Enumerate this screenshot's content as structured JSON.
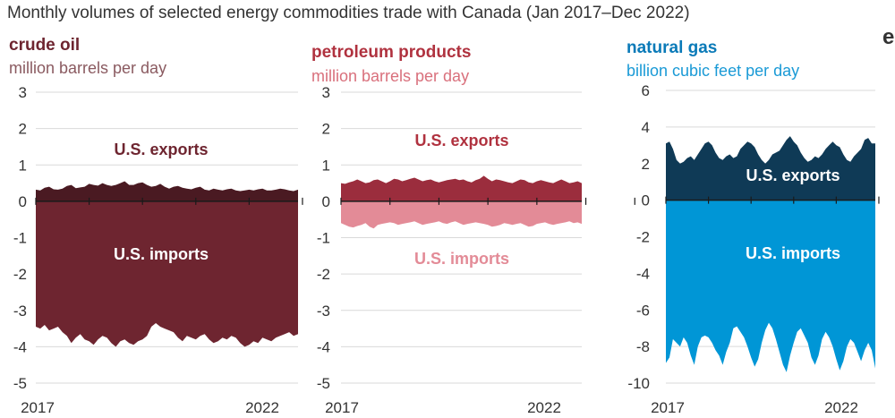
{
  "title": "Monthly volumes of selected energy commodities trade with Canada (Jan 2017–Dec 2022)",
  "logo_text": "e",
  "colors": {
    "crude_exports": "#4a1a22",
    "crude_imports": "#6e2530",
    "petroleum_exports": "#9b2d3d",
    "petroleum_imports": "#e38b97",
    "gas_exports": "#0f3a56",
    "gas_imports": "#0096d6",
    "crude_title": "#6e2530",
    "crude_unit": "#8a5a60",
    "petroleum_title": "#b0323f",
    "petroleum_unit": "#d9707c",
    "gas_title": "#0a7ab8",
    "gas_unit": "#1a9ad6"
  },
  "chart_data": [
    {
      "type": "area",
      "title": "crude oil",
      "ylabel": "million barrels per day",
      "ylim": [
        -5,
        3
      ],
      "yticks": [
        "3",
        "2",
        "1",
        "0",
        "-1",
        "-2",
        "-3",
        "-4",
        "-5"
      ],
      "xticks": [
        "2017",
        "2022"
      ],
      "x_range": [
        "Jan 2017",
        "Dec 2022"
      ],
      "annotations": {
        "exports": "U.S. exports",
        "imports": "U.S. imports"
      },
      "series": [
        {
          "name": "U.S. exports",
          "values": [
            0.32,
            0.3,
            0.37,
            0.4,
            0.33,
            0.32,
            0.35,
            0.42,
            0.45,
            0.36,
            0.38,
            0.4,
            0.48,
            0.45,
            0.43,
            0.5,
            0.45,
            0.42,
            0.45,
            0.5,
            0.55,
            0.45,
            0.45,
            0.5,
            0.52,
            0.45,
            0.4,
            0.42,
            0.48,
            0.4,
            0.35,
            0.4,
            0.42,
            0.37,
            0.35,
            0.33,
            0.37,
            0.4,
            0.32,
            0.3,
            0.35,
            0.32,
            0.3,
            0.33,
            0.35,
            0.3,
            0.28,
            0.3,
            0.32,
            0.3,
            0.33,
            0.35,
            0.3,
            0.3,
            0.32,
            0.35,
            0.33,
            0.3,
            0.28,
            0.32
          ]
        },
        {
          "name": "U.S. imports",
          "values": [
            -3.45,
            -3.5,
            -3.4,
            -3.55,
            -3.5,
            -3.45,
            -3.6,
            -3.7,
            -3.9,
            -3.75,
            -3.65,
            -3.8,
            -3.85,
            -3.95,
            -3.8,
            -3.7,
            -3.75,
            -3.9,
            -4.0,
            -3.85,
            -3.8,
            -3.9,
            -3.95,
            -3.85,
            -3.8,
            -3.7,
            -3.45,
            -3.35,
            -3.45,
            -3.5,
            -3.55,
            -3.6,
            -3.75,
            -3.85,
            -3.7,
            -3.75,
            -3.8,
            -3.7,
            -3.65,
            -3.8,
            -3.9,
            -3.85,
            -3.75,
            -3.8,
            -3.7,
            -3.75,
            -3.9,
            -4.0,
            -3.95,
            -3.85,
            -3.9,
            -3.75,
            -3.8,
            -3.85,
            -3.75,
            -3.7,
            -3.65,
            -3.6,
            -3.7,
            -3.65
          ]
        }
      ]
    },
    {
      "type": "area",
      "title": "petroleum products",
      "ylabel": "million barrels per day",
      "ylim": [
        -5,
        3
      ],
      "yticks": [
        "3",
        "2",
        "1",
        "0",
        "-1",
        "-2",
        "-3",
        "-4",
        "-5"
      ],
      "xticks": [
        "2017",
        "2022"
      ],
      "x_range": [
        "Jan 2017",
        "Dec 2022"
      ],
      "annotations": {
        "exports": "U.S. exports",
        "imports": "U.S. imports"
      },
      "series": [
        {
          "name": "U.S. exports",
          "values": [
            0.5,
            0.48,
            0.52,
            0.55,
            0.6,
            0.55,
            0.5,
            0.52,
            0.58,
            0.6,
            0.55,
            0.5,
            0.55,
            0.62,
            0.6,
            0.55,
            0.58,
            0.62,
            0.65,
            0.6,
            0.55,
            0.58,
            0.6,
            0.55,
            0.52,
            0.55,
            0.58,
            0.6,
            0.62,
            0.58,
            0.6,
            0.55,
            0.52,
            0.58,
            0.62,
            0.7,
            0.62,
            0.55,
            0.6,
            0.58,
            0.55,
            0.52,
            0.5,
            0.55,
            0.6,
            0.58,
            0.52,
            0.5,
            0.55,
            0.58,
            0.55,
            0.52,
            0.5,
            0.55,
            0.6,
            0.55,
            0.5,
            0.52,
            0.55,
            0.5
          ]
        },
        {
          "name": "U.S. imports",
          "values": [
            -0.6,
            -0.65,
            -0.7,
            -0.72,
            -0.68,
            -0.65,
            -0.6,
            -0.7,
            -0.75,
            -0.65,
            -0.62,
            -0.6,
            -0.58,
            -0.6,
            -0.65,
            -0.62,
            -0.6,
            -0.58,
            -0.55,
            -0.6,
            -0.65,
            -0.62,
            -0.6,
            -0.58,
            -0.55,
            -0.6,
            -0.62,
            -0.58,
            -0.55,
            -0.6,
            -0.65,
            -0.62,
            -0.6,
            -0.58,
            -0.6,
            -0.62,
            -0.65,
            -0.7,
            -0.68,
            -0.65,
            -0.6,
            -0.62,
            -0.65,
            -0.62,
            -0.6,
            -0.65,
            -0.7,
            -0.68,
            -0.62,
            -0.6,
            -0.58,
            -0.62,
            -0.65,
            -0.62,
            -0.6,
            -0.58,
            -0.55,
            -0.6,
            -0.58,
            -0.62
          ]
        }
      ]
    },
    {
      "type": "area",
      "title": "natural gas",
      "ylabel": "billion cubic feet per day",
      "ylim": [
        -10,
        6
      ],
      "yticks": [
        "6",
        "4",
        "2",
        "0",
        "-2",
        "-4",
        "-6",
        "-8",
        "-10"
      ],
      "xticks": [
        "2017",
        "2022"
      ],
      "x_range": [
        "Jan 2017",
        "Dec 2022"
      ],
      "annotations": {
        "exports": "U.S. exports",
        "imports": "U.S. imports"
      },
      "series": [
        {
          "name": "U.S. exports",
          "values": [
            3.1,
            3.2,
            2.8,
            2.2,
            2.0,
            2.1,
            2.3,
            2.4,
            2.2,
            2.5,
            2.8,
            3.1,
            3.2,
            3.0,
            2.6,
            2.3,
            2.2,
            2.4,
            2.5,
            2.3,
            2.4,
            2.8,
            3.0,
            3.2,
            3.1,
            2.9,
            2.5,
            2.2,
            2.0,
            2.2,
            2.5,
            2.6,
            2.7,
            3.0,
            3.3,
            3.5,
            3.2,
            3.0,
            2.6,
            2.3,
            2.1,
            2.2,
            2.4,
            2.3,
            2.5,
            2.8,
            3.0,
            3.2,
            3.0,
            2.9,
            2.5,
            2.2,
            2.1,
            2.4,
            2.6,
            2.8,
            3.3,
            3.4,
            3.1,
            3.1
          ]
        },
        {
          "name": "U.S. imports",
          "values": [
            -8.9,
            -8.6,
            -7.6,
            -7.8,
            -8.0,
            -7.5,
            -7.8,
            -8.5,
            -9.0,
            -8.0,
            -7.5,
            -7.4,
            -7.5,
            -7.8,
            -8.2,
            -8.5,
            -9.0,
            -8.3,
            -7.8,
            -7.0,
            -6.9,
            -7.2,
            -7.5,
            -8.0,
            -8.6,
            -9.1,
            -8.7,
            -7.8,
            -7.1,
            -6.7,
            -7.0,
            -7.6,
            -8.3,
            -9.0,
            -9.4,
            -8.5,
            -7.8,
            -7.2,
            -7.0,
            -7.4,
            -7.8,
            -8.6,
            -9.0,
            -8.5,
            -7.6,
            -7.2,
            -7.5,
            -8.0,
            -8.7,
            -9.3,
            -8.8,
            -8.0,
            -7.6,
            -7.8,
            -8.3,
            -8.8,
            -8.2,
            -7.8,
            -8.2,
            -9.2
          ]
        }
      ]
    }
  ]
}
